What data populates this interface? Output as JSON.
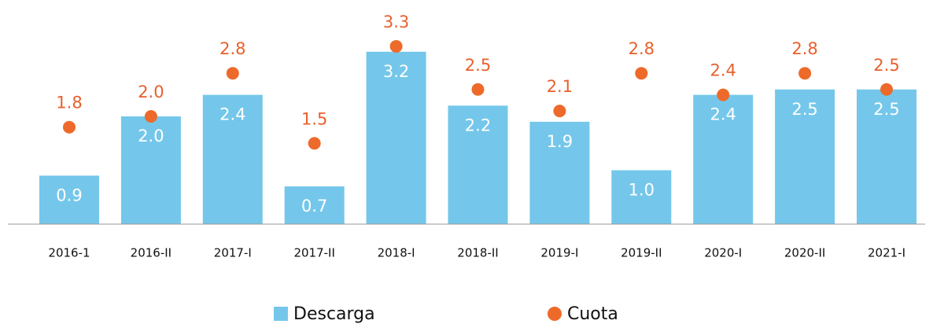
{
  "chart_data": {
    "type": "bar",
    "categories": [
      "2016-1",
      "2016-II",
      "2017-I",
      "2017-II",
      "2018-I",
      "2018-II",
      "2019-I",
      "2019-II",
      "2020-I",
      "2020-II",
      "2021-I"
    ],
    "series": [
      {
        "name": "Descarga",
        "type": "bar",
        "color": "#74c7ea",
        "values": [
          0.9,
          2.0,
          2.4,
          0.7,
          3.2,
          2.2,
          1.9,
          1.0,
          2.4,
          2.5,
          2.5
        ],
        "value_labels": [
          "0.9",
          "2.0",
          "2.4",
          "0.7",
          "3.2",
          "2.2",
          "1.9",
          "1.0",
          "2.4",
          "2.5",
          "2.5"
        ]
      },
      {
        "name": "Cuota",
        "type": "scatter",
        "color": "#ee6a2a",
        "values": [
          1.8,
          2.0,
          2.8,
          1.5,
          3.3,
          2.5,
          2.1,
          2.8,
          2.4,
          2.8,
          2.5
        ],
        "value_labels": [
          "1.8",
          "2.0",
          "2.8",
          "1.5",
          "3.3",
          "2.5",
          "2.1",
          "2.8",
          "2.4",
          "2.8",
          "2.5"
        ]
      }
    ]
  }
}
